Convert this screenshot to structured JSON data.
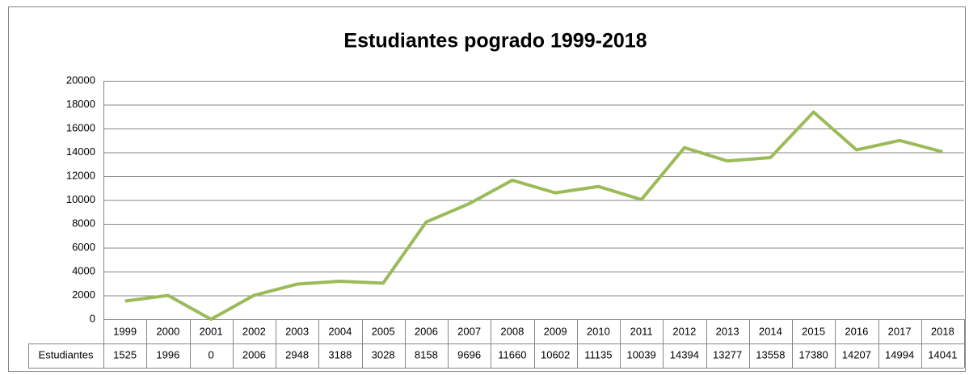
{
  "chart_data": {
    "type": "line",
    "title": "Estudiantes pogrado 1999-2018",
    "categories": [
      "1999",
      "2000",
      "2001",
      "2002",
      "2003",
      "2004",
      "2005",
      "2006",
      "2007",
      "2008",
      "2009",
      "2010",
      "2011",
      "2012",
      "2013",
      "2014",
      "2015",
      "2016",
      "2017",
      "2018"
    ],
    "series": [
      {
        "name": "Estudiantes",
        "color": "#9bbb59",
        "values": [
          1525,
          1996,
          0,
          2006,
          2948,
          3188,
          3028,
          8158,
          9696,
          11660,
          10602,
          11135,
          10039,
          14394,
          13277,
          13558,
          17380,
          14207,
          14994,
          14041
        ]
      }
    ],
    "ylim": [
      0,
      20000
    ],
    "yticks": [
      0,
      2000,
      4000,
      6000,
      8000,
      10000,
      12000,
      14000,
      16000,
      18000,
      20000
    ],
    "grid": true
  }
}
